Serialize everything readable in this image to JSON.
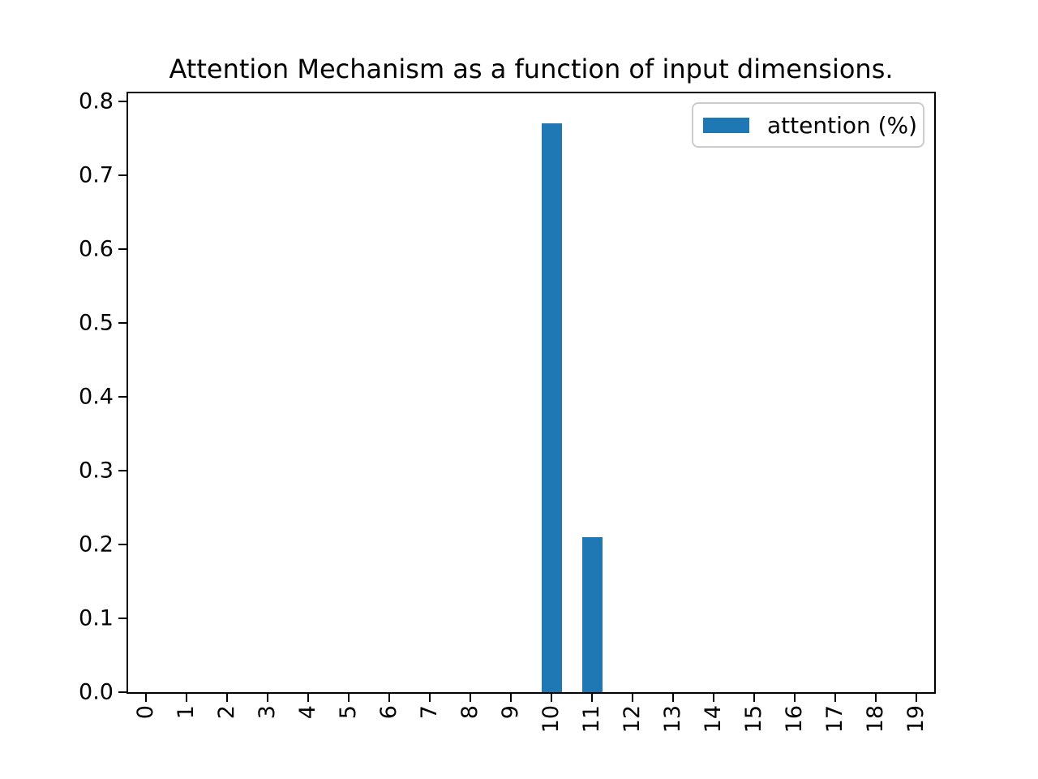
{
  "title": "Attention Mechanism as a function of input dimensions.",
  "legend": {
    "label": "attention (%)",
    "position": "upper right"
  },
  "colors": {
    "bar": "#1f77b4",
    "spine": "#000000",
    "legend_border": "#cccccc",
    "background": "#ffffff",
    "text": "#000000"
  },
  "chart_data": {
    "type": "bar",
    "title": "Attention Mechanism as a function of input dimensions.",
    "categories": [
      "0",
      "1",
      "2",
      "3",
      "4",
      "5",
      "6",
      "7",
      "8",
      "9",
      "10",
      "11",
      "12",
      "13",
      "14",
      "15",
      "16",
      "17",
      "18",
      "19"
    ],
    "values": [
      0,
      0,
      0,
      0,
      0,
      0,
      0,
      0,
      0,
      0,
      0.77,
      0.21,
      0,
      0,
      0,
      0,
      0,
      0,
      0,
      0
    ],
    "series": [
      {
        "name": "attention (%)",
        "values": [
          0,
          0,
          0,
          0,
          0,
          0,
          0,
          0,
          0,
          0,
          0.77,
          0.21,
          0,
          0,
          0,
          0,
          0,
          0,
          0,
          0
        ]
      }
    ],
    "xlabel": "",
    "ylabel": "",
    "ylim": [
      0.0,
      0.811
    ],
    "yticks": [
      "0.0",
      "0.1",
      "0.2",
      "0.3",
      "0.4",
      "0.5",
      "0.6",
      "0.7",
      "0.8"
    ],
    "xtick_rotation_deg": 90,
    "bar_width_units": 0.5,
    "bar_color": "#1f77b4",
    "grid": false,
    "legend_entries": [
      "attention (%)"
    ],
    "legend_position": "upper right"
  }
}
